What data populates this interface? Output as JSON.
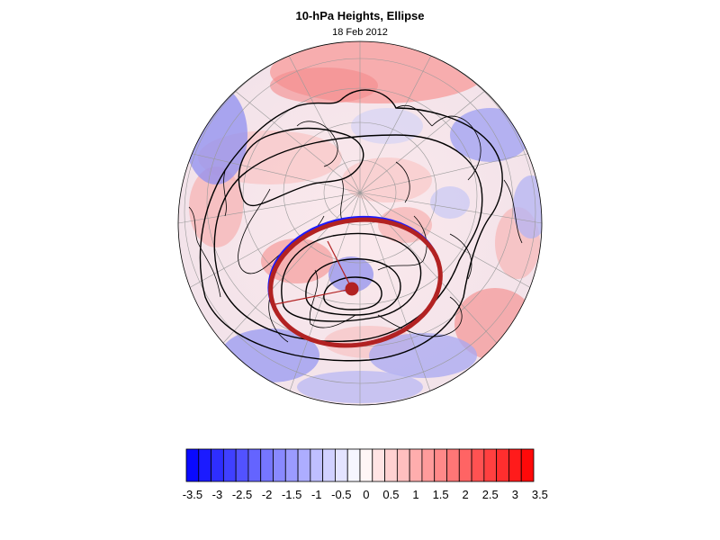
{
  "figure": {
    "title": "10-hPa Heights, Ellipse",
    "subtitle": "18 Feb 2012"
  },
  "map": {
    "projection": "orthographic polar (north pole)",
    "contour_color": "#000000",
    "ellipse_color": "#b22222",
    "ellipse_edge_color": "#1a1aff",
    "centroid_color": "#b22222"
  },
  "colorbar": {
    "levels": [
      -3.5,
      -3.25,
      -3,
      -2.75,
      -2.5,
      -2.25,
      -2,
      -1.75,
      -1.5,
      -1.25,
      -1,
      -0.75,
      -0.5,
      -0.25,
      0,
      0.25,
      0.5,
      0.75,
      1,
      1.25,
      1.5,
      1.75,
      2,
      2.25,
      2.5,
      2.75,
      3,
      3.25,
      3.5
    ],
    "tick_labels": [
      "-3.5",
      "-3",
      "-2.5",
      "-2",
      "-1.5",
      "-1",
      "-0.5",
      "0",
      "0.5",
      "1",
      "1.5",
      "2",
      "2.5",
      "3",
      "3.5"
    ],
    "negative_color": "#0000ff",
    "neutral_color": "#ffffff",
    "positive_color": "#ff0000"
  }
}
